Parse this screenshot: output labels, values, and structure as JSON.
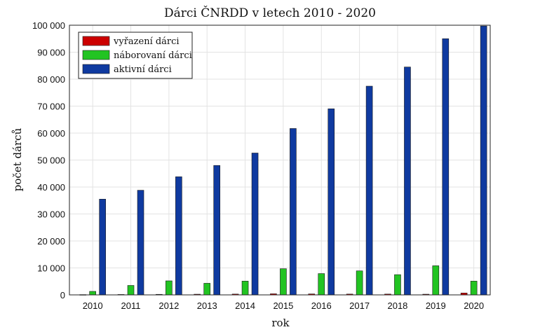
{
  "chart_data": {
    "type": "bar",
    "title": "Dárci ČNRDD v letech 2010 - 2020",
    "xlabel": "rok",
    "ylabel": "počet dárců",
    "categories": [
      "2010",
      "2011",
      "2012",
      "2013",
      "2014",
      "2015",
      "2016",
      "2017",
      "2018",
      "2019",
      "2020"
    ],
    "ylim": [
      0,
      100000
    ],
    "yticks": [
      0,
      10000,
      20000,
      30000,
      40000,
      50000,
      60000,
      70000,
      80000,
      90000,
      100000
    ],
    "ytick_labels": [
      "0",
      "10 000",
      "20 000",
      "30 000",
      "40 000",
      "50 000",
      "60 000",
      "70 000",
      "80 000",
      "90 000",
      "100 000"
    ],
    "grid": true,
    "legend_position": "top-left",
    "series": [
      {
        "name": "vyřazení dárci",
        "color": "#cc0000",
        "values": [
          100,
          150,
          200,
          250,
          300,
          400,
          350,
          300,
          300,
          250,
          700
        ]
      },
      {
        "name": "náborovaní dárci",
        "color": "#22c422",
        "values": [
          1300,
          3500,
          5200,
          4300,
          5100,
          9700,
          7900,
          8900,
          7500,
          10800,
          5100
        ]
      },
      {
        "name": "aktivní dárci",
        "color": "#0f3aa0",
        "values": [
          35500,
          38800,
          43800,
          48000,
          52600,
          61700,
          69000,
          77400,
          84500,
          95000,
          99700
        ]
      }
    ]
  }
}
